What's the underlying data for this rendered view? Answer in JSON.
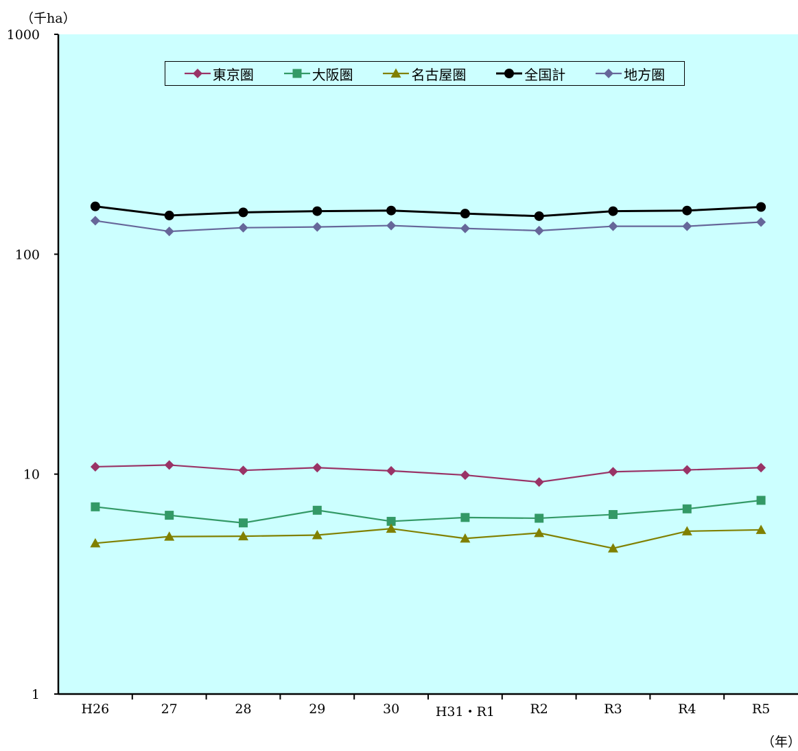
{
  "y_unit": "（千ha）",
  "x_unit": "（年）",
  "chart_data": {
    "type": "line",
    "y_scale": "log",
    "ylim": [
      1,
      1000
    ],
    "y_ticks": [
      1,
      10,
      100,
      1000
    ],
    "categories": [
      "H26",
      "27",
      "28",
      "29",
      "30",
      "H31・R1",
      "R2",
      "R3",
      "R4",
      "R5"
    ],
    "legend_position": "top-center",
    "grid": false,
    "plot_background": "#ccffff",
    "series": [
      {
        "name": "東京圏",
        "color": "#993366",
        "marker": "diamond",
        "values": [
          10.8,
          11.0,
          10.4,
          10.7,
          10.35,
          9.9,
          9.2,
          10.25,
          10.45,
          10.7
        ]
      },
      {
        "name": "大阪圏",
        "color": "#339966",
        "marker": "square",
        "values": [
          7.1,
          6.5,
          6.0,
          6.85,
          6.1,
          6.35,
          6.3,
          6.55,
          6.95,
          7.6
        ]
      },
      {
        "name": "名古屋圏",
        "color": "#808000",
        "marker": "triangle",
        "values": [
          4.85,
          5.2,
          5.22,
          5.28,
          5.65,
          5.1,
          5.4,
          4.6,
          5.5,
          5.58
        ]
      },
      {
        "name": "全国計",
        "color": "#000000",
        "marker": "circle",
        "values": [
          165,
          150,
          155,
          157,
          158,
          153,
          149,
          157,
          158,
          164
        ]
      },
      {
        "name": "地方圏",
        "color": "#666699",
        "marker": "diamond",
        "values": [
          142,
          127,
          132,
          133,
          135,
          131,
          128,
          134,
          134,
          140
        ]
      }
    ]
  }
}
